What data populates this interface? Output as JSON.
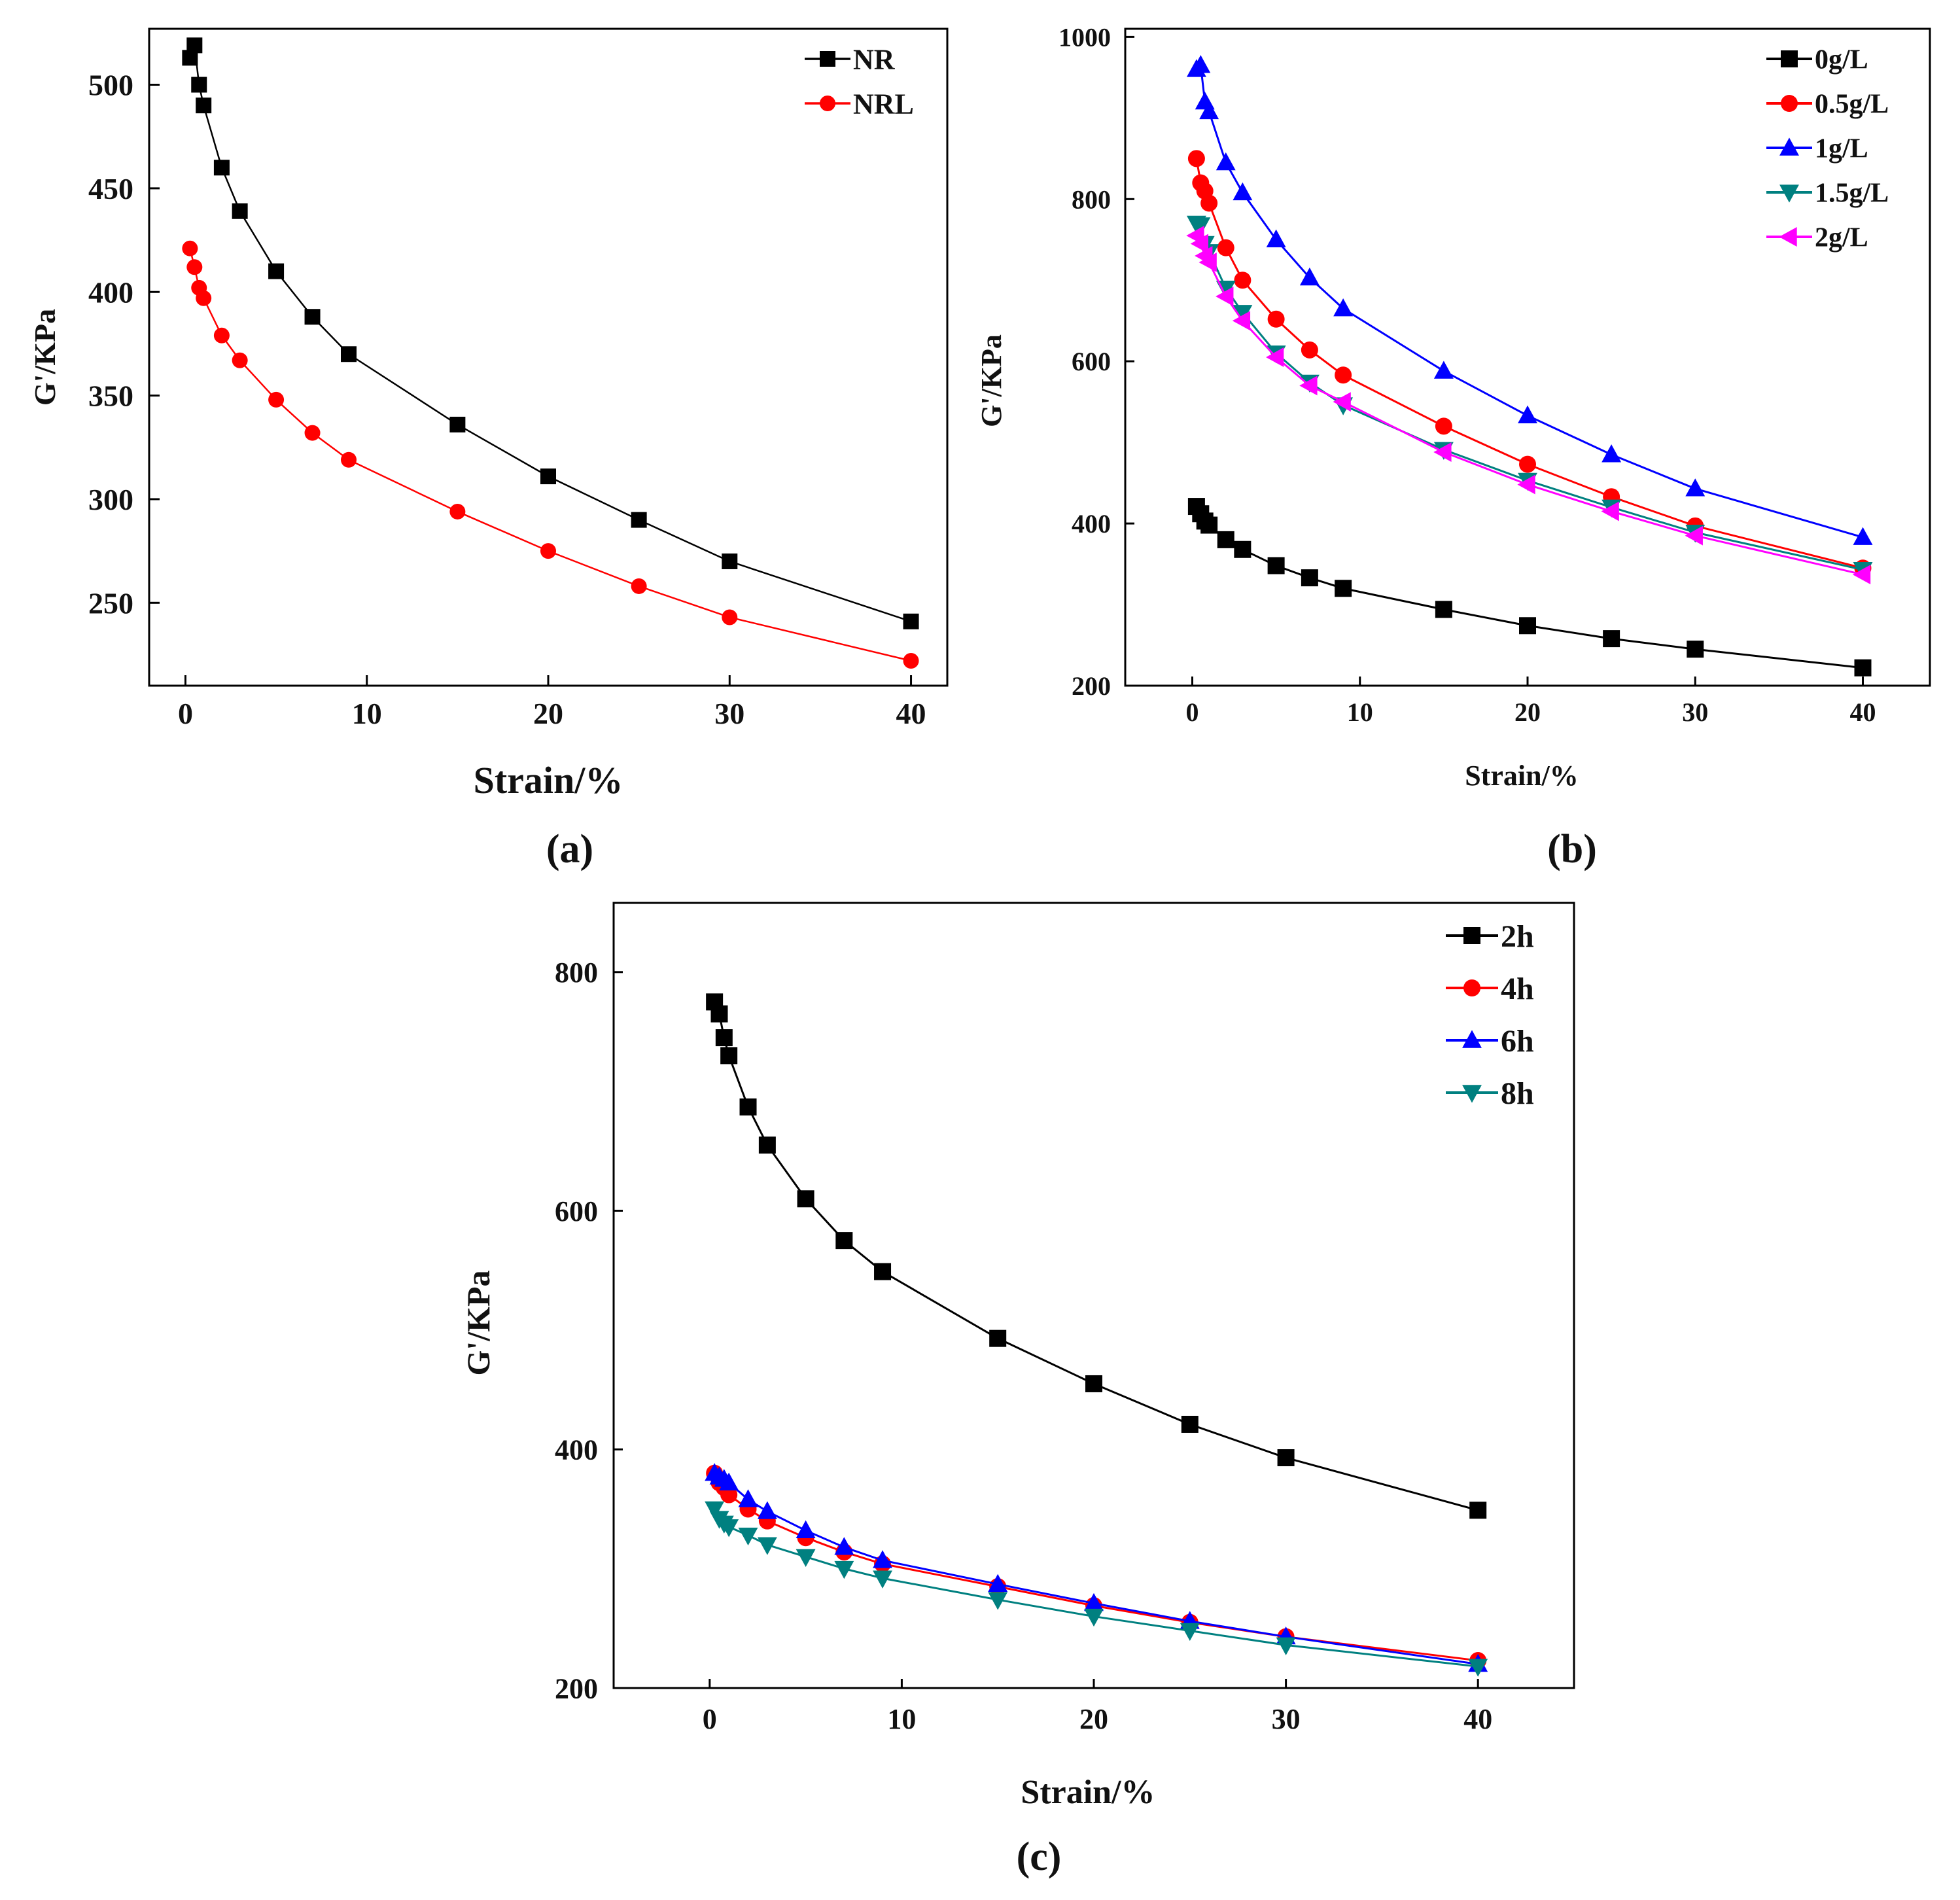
{
  "figure": {
    "panels_count": 3
  },
  "chart_data": [
    {
      "id": "a",
      "type": "line",
      "caption": "(a)",
      "xlabel": "Strain/%",
      "ylabel": "G'/KPa",
      "xlim": [
        -2,
        42
      ],
      "ylim": [
        210,
        527
      ],
      "xticks": [
        0,
        10,
        20,
        30,
        40
      ],
      "yticks": [
        250,
        300,
        350,
        400,
        450,
        500
      ],
      "legend_position": "top-right",
      "series": [
        {
          "name": "NR",
          "color": "#000000",
          "marker": "square",
          "x": [
            0.25,
            0.5,
            0.75,
            1,
            2,
            3,
            5,
            7,
            9,
            15,
            20,
            25,
            30,
            40
          ],
          "y": [
            513,
            519,
            500,
            490,
            460,
            439,
            410,
            388,
            370,
            336,
            311,
            290,
            270,
            241
          ]
        },
        {
          "name": "NRL",
          "color": "#ff0000",
          "marker": "circle",
          "x": [
            0.25,
            0.5,
            0.75,
            1,
            2,
            3,
            5,
            7,
            9,
            15,
            20,
            25,
            30,
            40
          ],
          "y": [
            421,
            412,
            402,
            397,
            379,
            367,
            348,
            332,
            319,
            294,
            275,
            258,
            243,
            222
          ]
        }
      ]
    },
    {
      "id": "b",
      "type": "line",
      "caption": "(b)",
      "xlabel": "Strain/%",
      "ylabel": "G'/KPa",
      "xlim": [
        -4,
        44
      ],
      "ylim": [
        200,
        1010
      ],
      "xticks": [
        0,
        10,
        20,
        30,
        40
      ],
      "yticks": [
        200,
        400,
        600,
        800,
        1000
      ],
      "legend_position": "top-right",
      "series": [
        {
          "name": "0g/L",
          "color": "#000000",
          "marker": "square",
          "x": [
            0.25,
            0.5,
            0.75,
            1,
            2,
            3,
            5,
            7,
            9,
            15,
            20,
            25,
            30,
            40
          ],
          "y": [
            421,
            412,
            403,
            398,
            380,
            368,
            348,
            333,
            320,
            294,
            274,
            258,
            245,
            222
          ]
        },
        {
          "name": "0.5g/L",
          "color": "#ff0000",
          "marker": "circle",
          "x": [
            0.25,
            0.5,
            0.75,
            1,
            2,
            3,
            5,
            7,
            9,
            15,
            20,
            25,
            30,
            40
          ],
          "y": [
            850,
            820,
            810,
            795,
            740,
            700,
            652,
            614,
            583,
            520,
            473,
            433,
            397,
            345
          ]
        },
        {
          "name": "1g/L",
          "color": "#0000ff",
          "marker": "triangle-up",
          "x": [
            0.25,
            0.5,
            0.75,
            1,
            2,
            3,
            5,
            7,
            9,
            15,
            20,
            25,
            30,
            40
          ],
          "y": [
            960,
            965,
            920,
            908,
            845,
            808,
            750,
            703,
            665,
            588,
            533,
            485,
            443,
            383
          ]
        },
        {
          "name": "1.5g/L",
          "color": "#008080",
          "marker": "triangle-down",
          "x": [
            0.25,
            0.5,
            0.75,
            1,
            2,
            3,
            5,
            7,
            9,
            15,
            20,
            25,
            30,
            40
          ],
          "y": [
            770,
            768,
            745,
            735,
            690,
            660,
            610,
            574,
            546,
            491,
            453,
            420,
            389,
            343
          ]
        },
        {
          "name": "2g/L",
          "color": "#ff00ff",
          "marker": "triangle-left",
          "x": [
            0.25,
            0.5,
            0.75,
            1,
            2,
            3,
            5,
            7,
            9,
            15,
            20,
            25,
            30,
            40
          ],
          "y": [
            755,
            745,
            730,
            722,
            680,
            650,
            605,
            570,
            550,
            488,
            448,
            415,
            385,
            337
          ]
        }
      ]
    },
    {
      "id": "c",
      "type": "line",
      "caption": "(c)",
      "xlabel": "Strain/%",
      "ylabel": "G'/KPa",
      "xlim": [
        -5,
        45
      ],
      "ylim": [
        200,
        858
      ],
      "xticks": [
        0,
        10,
        20,
        30,
        40
      ],
      "yticks": [
        200,
        400,
        600,
        800
      ],
      "legend_position": "top-right",
      "series": [
        {
          "name": "2h",
          "color": "#000000",
          "marker": "square",
          "x": [
            0.25,
            0.5,
            0.75,
            1,
            2,
            3,
            5,
            7,
            9,
            15,
            20,
            25,
            30,
            40
          ],
          "y": [
            775,
            765,
            745,
            730,
            687,
            655,
            610,
            575,
            549,
            493,
            455,
            421,
            393,
            349
          ]
        },
        {
          "name": "4h",
          "color": "#ff0000",
          "marker": "circle",
          "x": [
            0.25,
            0.5,
            0.75,
            1,
            2,
            3,
            5,
            7,
            9,
            15,
            20,
            25,
            30,
            40
          ],
          "y": [
            380,
            372,
            368,
            362,
            350,
            340,
            326,
            314,
            304,
            285,
            269,
            255,
            243,
            223
          ]
        },
        {
          "name": "6h",
          "color": "#0000ff",
          "marker": "triangle-up",
          "x": [
            0.25,
            0.5,
            0.75,
            1,
            2,
            3,
            5,
            7,
            9,
            15,
            20,
            25,
            30,
            40
          ],
          "y": [
            380,
            377,
            375,
            372,
            358,
            348,
            332,
            318,
            307,
            287,
            271,
            256,
            243,
            220
          ]
        },
        {
          "name": "8h",
          "color": "#008080",
          "marker": "triangle-down",
          "x": [
            0.25,
            0.5,
            0.75,
            1,
            2,
            3,
            5,
            7,
            9,
            15,
            20,
            25,
            30,
            40
          ],
          "y": [
            350,
            342,
            338,
            335,
            328,
            320,
            310,
            300,
            292,
            274,
            260,
            248,
            236,
            218
          ]
        }
      ]
    }
  ]
}
